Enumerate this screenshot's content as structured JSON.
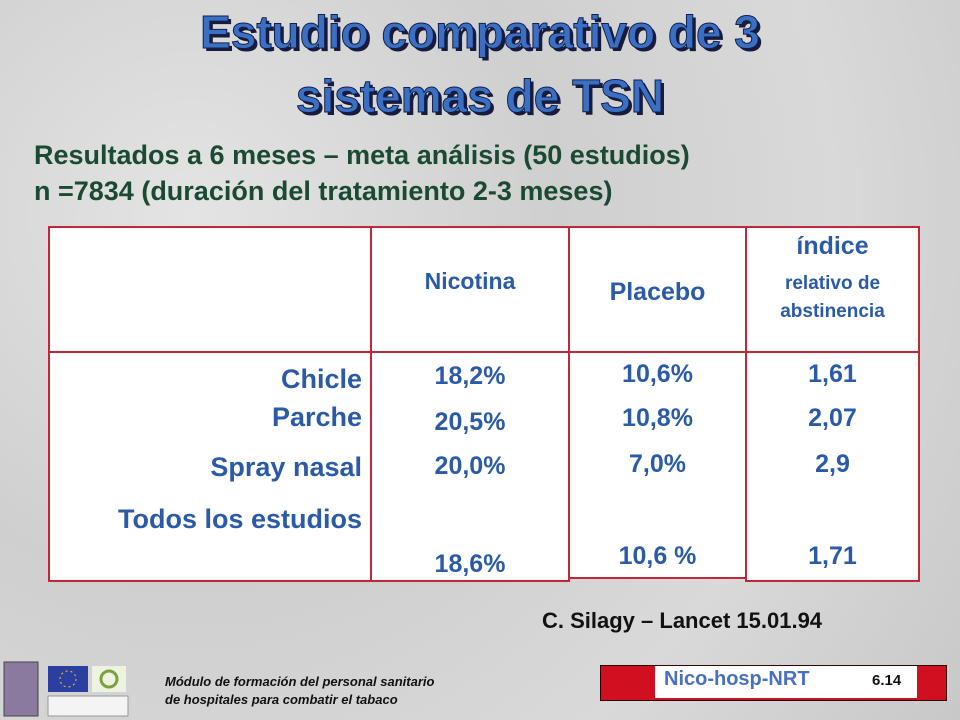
{
  "title": [
    "Estudio comparativo de 3",
    "sistemas de TSN"
  ],
  "subtitle": [
    "Resultados a 6 meses – meta análisis (50 estudios)",
    "n =7834  (duración del tratamiento 2-3 meses)"
  ],
  "table": {
    "columns": [
      "Nicotina",
      "Placebo",
      {
        "heading": "índice",
        "subheading": "relativo de abstinencia"
      }
    ],
    "rows": [
      [
        "Chicle",
        "18,2%",
        "10,6%",
        "1,61"
      ],
      [
        "Parche",
        "20,5%",
        "10,8%",
        "2,07"
      ],
      [
        "Spray nasal",
        "20,0%",
        "7,0%",
        "2,9"
      ],
      [
        "Todos los estudios",
        "18,6%",
        "10,6 %",
        "1,71"
      ]
    ]
  },
  "citation": "C. Silagy – Lancet 15.01.94",
  "footer": {
    "module": [
      "Módulo de formación del personal sanitario",
      "de hospitales  para combatir el tabaco"
    ],
    "code": "Nico-hosp-NRT",
    "page": "6.14"
  }
}
